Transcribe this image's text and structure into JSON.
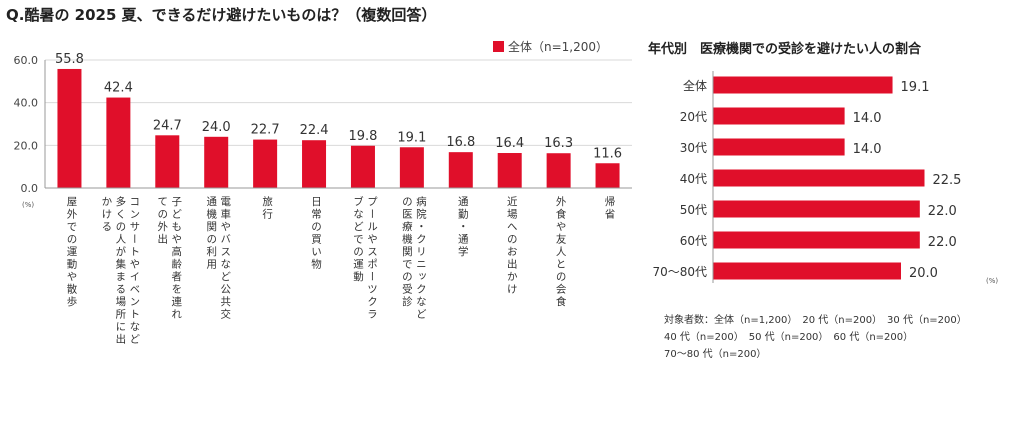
{
  "page": {
    "question_title": "Q.酷暑の 2025 夏、できるだけ避けたいものは？（複数回答）",
    "right_title": "年代別　医療機関での受診を避けたい人の割合",
    "legend_label": "全体（n=1,200）",
    "notes": [
      "対象者数：全体（n=1,200）　20 代（n=200）　30 代（n=200）",
      "40 代（n=200）　50 代（n=200）　60 代（n=200）",
      "70～80 代（n=200）"
    ]
  },
  "colors": {
    "bar": "#e00f2a",
    "axis": "#999999",
    "grid": "#d9d9d9"
  },
  "chart_data": [
    {
      "type": "bar",
      "title": "Q.酷暑の 2025 夏、できるだけ避けたいものは？（複数回答）",
      "series": [
        {
          "name": "全体（n=1,200）"
        }
      ],
      "unit": "(%)",
      "categories": [
        "屋外での運動や散歩",
        "コンサートやイベントなど\n多くの人が集まる場所に出\nかける",
        "子どもや高齢者を連れ\nての外出",
        "電車やバスなど公共交\n通機関の利用",
        "旅行",
        "日常の買い物",
        "プールやスポーツクラ\nブなどでの運動",
        "病院・クリニックなど\nの医療機関での受診",
        "通勤・通学",
        "近場へのお出かけ",
        "外食や友人との会食",
        "帰省"
      ],
      "values": [
        55.8,
        42.4,
        24.7,
        24.0,
        22.7,
        22.4,
        19.8,
        19.1,
        16.8,
        16.4,
        16.3,
        11.6
      ],
      "value_labels": [
        "55.8",
        "42.4",
        "24.7",
        "24.0",
        "22.7",
        "22.4",
        "19.8",
        "19.1",
        "16.8",
        "16.4",
        "16.3",
        "11.6"
      ],
      "ylim": [
        0,
        60
      ],
      "yticks": [
        "0.0",
        "20.0",
        "40.0",
        "60.0"
      ],
      "grid": true
    },
    {
      "type": "bar",
      "orientation": "horizontal",
      "title": "年代別　医療機関での受診を避けたい人の割合",
      "unit": "(%)",
      "categories": [
        "全体",
        "20代",
        "30代",
        "40代",
        "50代",
        "60代",
        "70～80代"
      ],
      "values": [
        19.1,
        14.0,
        14.0,
        22.5,
        22.0,
        22.0,
        20.0
      ],
      "value_labels": [
        "19.1",
        "14.0",
        "14.0",
        "22.5",
        "22.0",
        "22.0",
        "20.0"
      ],
      "xlim": [
        0,
        25
      ]
    }
  ]
}
